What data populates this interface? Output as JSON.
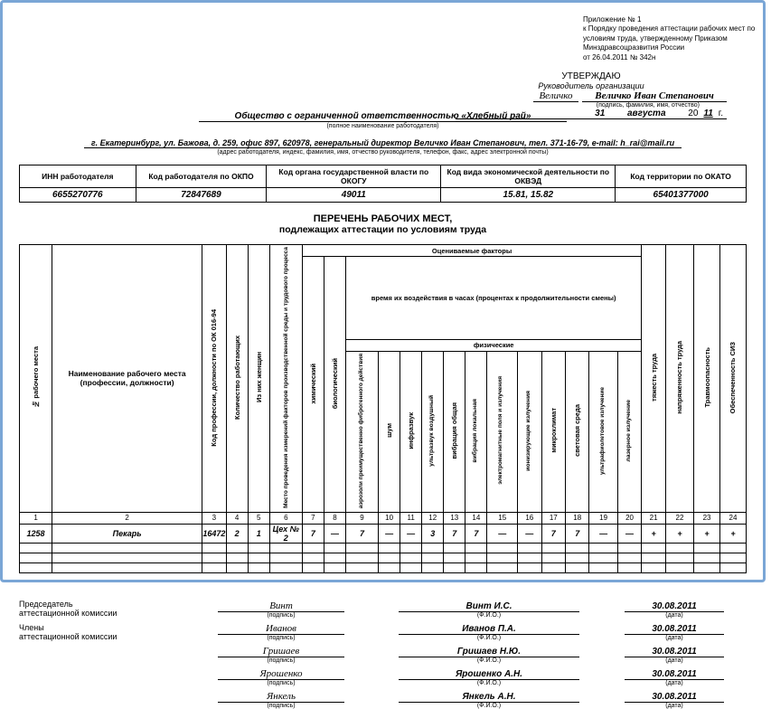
{
  "appendix": {
    "line1": "Приложение № 1",
    "line2": "к Порядку проведения аттестации рабочих мест по",
    "line3": "условиям труда, утвержденному Приказом",
    "line4": "Минздравсоцразвития России",
    "line5": "от 26.04.2011 № 342н"
  },
  "approval": {
    "title": "УТВЕРЖДАЮ",
    "role": "Руководитель организации",
    "sig": "Величко",
    "name": "Величко Иван Степанович",
    "sig_cap": "(подпись, фамилия, имя, отчество)",
    "day": "31",
    "month": "августа",
    "year_prefix": "20",
    "year": "11",
    "year_suffix": "г."
  },
  "org": {
    "name": "Общество с ограниченной ответственностью «Хлебный рай»",
    "cap": "(полное наименование работодателя)",
    "addr": "г. Екатеринбург, ул. Бажова, д. 259, офис 897, 620978, генеральный директор Величко Иван Степанович, тел. 371-16-79, e-mail: h_rai@mail.ru",
    "addr_cap": "(адрес работодателя, индекс, фамилия, имя, отчество руководителя, телефон, факс, адрес электронной почты)"
  },
  "codes": {
    "headers": [
      "ИНН работодателя",
      "Код работодателя по ОКПО",
      "Код органа государственной власти по ОКОГУ",
      "Код вида экономической деятельности по ОКВЭД",
      "Код территории по ОКАТО"
    ],
    "values": [
      "6655270776",
      "72847689",
      "49011",
      "15.81, 15.82",
      "65401377000"
    ]
  },
  "title": {
    "l1": "ПЕРЕЧЕНЬ РАБОЧИХ МЕСТ,",
    "l2": "подлежащих аттестации по условиям труда"
  },
  "main_header": {
    "col1": "№ рабочего места",
    "col2": "Наименование рабочего места (профессии, должности)",
    "col3": "Код профессии, должности по ОК 016-94",
    "col4": "Количество работающих",
    "col5": "Из них женщин",
    "col6": "Место проведения измерений факторов производственной среды и трудового процесса",
    "grp_eval": "Оцениваемые факторы",
    "grp_time": "время их воздействия в часах (процентах к продолжительности смены)",
    "grp_phys": "физические",
    "c7": "химический",
    "c8": "биологический",
    "c9": "аэрозоли преимущественно фиброгенного действия",
    "c10": "шум",
    "c11": "инфразвук",
    "c12": "ультразвук воздушный",
    "c13": "вибрация общая",
    "c14": "вибрация локальная",
    "c15": "электромагнитные поля и излучения",
    "c16": "ионизирующие излучения",
    "c17": "микроклимат",
    "c18": "световая среда",
    "c19": "ультрафиолетовое излучение",
    "c20": "лазерное излучение",
    "c21": "тяжесть труда",
    "c22": "напряженность труда",
    "c23": "Травмоопасность",
    "c24": "Обеспеченность СИЗ"
  },
  "nums": [
    "1",
    "2",
    "3",
    "4",
    "5",
    "6",
    "7",
    "8",
    "9",
    "10",
    "11",
    "12",
    "13",
    "14",
    "15",
    "16",
    "17",
    "18",
    "19",
    "20",
    "21",
    "22",
    "23",
    "24"
  ],
  "row": {
    "c1": "1258",
    "c2": "Пекарь",
    "c3": "16472",
    "c4": "2",
    "c5": "1",
    "c6": "Цех № 2",
    "c7": "7",
    "c8": "—",
    "c9": "7",
    "c10": "—",
    "c11": "—",
    "c12": "3",
    "c13": "7",
    "c14": "7",
    "c15": "—",
    "c16": "—",
    "c17": "7",
    "c18": "7",
    "c19": "—",
    "c20": "—",
    "c21": "+",
    "c22": "+",
    "c23": "+",
    "c24": "+"
  },
  "sigs": {
    "chair_label1": "Председатель",
    "chair_label2": "аттестационной комиссии",
    "mem_label1": "Члены",
    "mem_label2": "аттестационной комиссии",
    "cap_sig": "(подпись)",
    "cap_fio": "(Ф.И.О.)",
    "cap_date": "(дата)",
    "rows": [
      {
        "sig": "Винт",
        "fio": "Винт И.С.",
        "date": "30.08.2011"
      },
      {
        "sig": "Иванов",
        "fio": "Иванов П.А.",
        "date": "30.08.2011"
      },
      {
        "sig": "Гришаев",
        "fio": "Гришаев Н.Ю.",
        "date": "30.08.2011"
      },
      {
        "sig": "Ярошенко",
        "fio": "Ярошенко А.Н.",
        "date": "30.08.2011"
      },
      {
        "sig": "Янкель",
        "fio": "Янкель А.Н.",
        "date": "30.08.2011"
      }
    ]
  },
  "colors": {
    "border": "#7aa6d6",
    "text": "#000000"
  }
}
